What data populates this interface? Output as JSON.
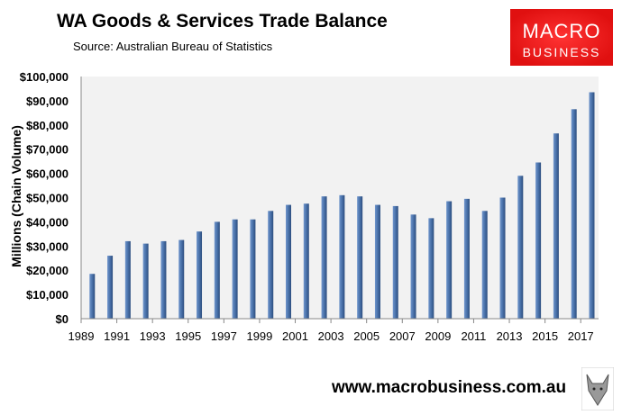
{
  "header": {
    "title": "WA Goods & Services Trade Balance",
    "source": "Source:  Australian Bureau of Statistics"
  },
  "logo": {
    "line1": "MACRO",
    "line2": "BUSINESS"
  },
  "footer": {
    "url": "www.macrobusiness.com.au"
  },
  "colors": {
    "bar": "#4a72aa",
    "plot_bg": "#f2f2f2",
    "logo": "#e8191b"
  },
  "chart_data": {
    "type": "bar",
    "title": "WA Goods & Services Trade Balance",
    "ylabel": "Millions (Chain Volume)",
    "xlabel": "",
    "ylim": [
      0,
      100000
    ],
    "yticks": [
      "$0",
      "$10,000",
      "$20,000",
      "$30,000",
      "$40,000",
      "$50,000",
      "$60,000",
      "$70,000",
      "$80,000",
      "$90,000",
      "$100,000"
    ],
    "xtick_labels": [
      "1989",
      "1991",
      "1993",
      "1995",
      "1997",
      "1999",
      "2001",
      "2003",
      "2005",
      "2007",
      "2009",
      "2011",
      "2013",
      "2015",
      "2017"
    ],
    "categories": [
      1989,
      1990,
      1991,
      1992,
      1993,
      1994,
      1995,
      1996,
      1997,
      1998,
      1999,
      2000,
      2001,
      2002,
      2003,
      2004,
      2005,
      2006,
      2007,
      2008,
      2009,
      2010,
      2011,
      2012,
      2013,
      2014,
      2015,
      2016,
      2017
    ],
    "values": [
      18500,
      26000,
      32000,
      31000,
      32000,
      32500,
      36000,
      40000,
      41000,
      41000,
      44500,
      47000,
      47500,
      50500,
      51000,
      50500,
      47000,
      46500,
      43000,
      41500,
      48500,
      49500,
      44500,
      50000,
      59000,
      64500,
      76500,
      86500,
      93500
    ],
    "grid": false,
    "legend": "none"
  }
}
